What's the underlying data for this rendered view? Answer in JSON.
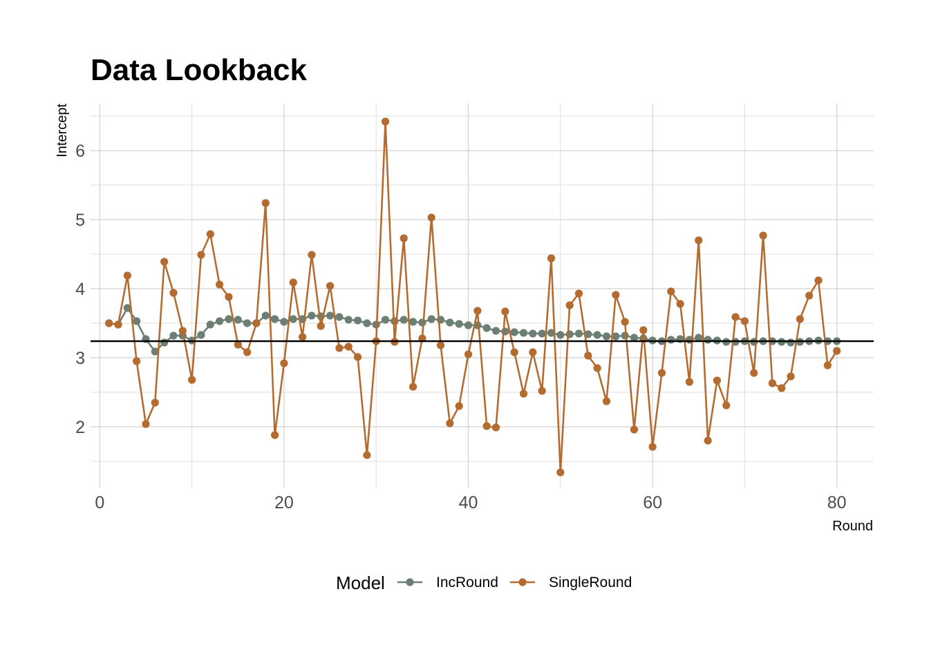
{
  "chart_data": {
    "type": "line",
    "title": "Data Lookback",
    "xlabel": "Round",
    "ylabel": "Intercept",
    "xlim": [
      -1,
      84
    ],
    "ylim": [
      1.12,
      6.68
    ],
    "x_ticks": [
      0,
      20,
      40,
      60,
      80
    ],
    "x_tick_labels": [
      "0",
      "20",
      "40",
      "60",
      "80"
    ],
    "y_ticks": [
      2,
      3,
      4,
      5,
      6
    ],
    "y_tick_labels": [
      "2",
      "3",
      "4",
      "5",
      "6"
    ],
    "grid": true,
    "reference_line": {
      "y": 3.24,
      "color": "#000000"
    },
    "legend": {
      "title": "Model",
      "position": "bottom"
    },
    "x": [
      1,
      2,
      3,
      4,
      5,
      6,
      7,
      8,
      9,
      10,
      11,
      12,
      13,
      14,
      15,
      16,
      17,
      18,
      19,
      20,
      21,
      22,
      23,
      24,
      25,
      26,
      27,
      28,
      29,
      30,
      31,
      32,
      33,
      34,
      35,
      36,
      37,
      38,
      39,
      40,
      41,
      42,
      43,
      44,
      45,
      46,
      47,
      48,
      49,
      50,
      51,
      52,
      53,
      54,
      55,
      56,
      57,
      58,
      59,
      60,
      61,
      62,
      63,
      64,
      65,
      66,
      67,
      68,
      69,
      70,
      71,
      72,
      73,
      74,
      75,
      76,
      77,
      78,
      79,
      80
    ],
    "series": [
      {
        "name": "IncRound",
        "color": "#6b7f74",
        "values": [
          3.5,
          3.48,
          3.72,
          3.53,
          3.27,
          3.09,
          3.22,
          3.32,
          3.32,
          3.25,
          3.33,
          3.48,
          3.53,
          3.56,
          3.55,
          3.5,
          3.5,
          3.61,
          3.56,
          3.52,
          3.56,
          3.56,
          3.61,
          3.6,
          3.61,
          3.59,
          3.55,
          3.54,
          3.5,
          3.48,
          3.55,
          3.53,
          3.55,
          3.52,
          3.51,
          3.56,
          3.55,
          3.51,
          3.49,
          3.47,
          3.47,
          3.43,
          3.39,
          3.38,
          3.37,
          3.36,
          3.35,
          3.35,
          3.36,
          3.33,
          3.34,
          3.35,
          3.34,
          3.33,
          3.31,
          3.31,
          3.32,
          3.29,
          3.28,
          3.25,
          3.24,
          3.26,
          3.27,
          3.26,
          3.29,
          3.26,
          3.25,
          3.23,
          3.23,
          3.24,
          3.23,
          3.24,
          3.24,
          3.23,
          3.22,
          3.23,
          3.24,
          3.25,
          3.24,
          3.24
        ]
      },
      {
        "name": "SingleRound",
        "color": "#b46b2f",
        "values": [
          3.5,
          3.48,
          4.19,
          2.95,
          2.04,
          2.35,
          4.39,
          3.94,
          3.39,
          2.68,
          4.49,
          4.79,
          4.06,
          3.88,
          3.19,
          3.08,
          3.5,
          5.24,
          1.88,
          2.92,
          4.09,
          3.3,
          4.49,
          3.46,
          4.04,
          3.14,
          3.16,
          3.01,
          1.59,
          3.24,
          6.42,
          3.23,
          4.73,
          2.58,
          3.28,
          5.03,
          3.18,
          2.05,
          2.3,
          3.05,
          3.68,
          2.01,
          1.99,
          3.67,
          3.08,
          2.48,
          3.08,
          2.52,
          4.44,
          1.34,
          3.76,
          3.93,
          3.03,
          2.85,
          2.37,
          3.91,
          3.52,
          1.96,
          3.4,
          1.71,
          2.78,
          3.96,
          3.78,
          2.65,
          4.7,
          1.8,
          2.67,
          2.31,
          3.59,
          3.53,
          2.78,
          4.77,
          2.63,
          2.56,
          2.73,
          3.56,
          3.9,
          4.12,
          2.89,
          3.1
        ]
      }
    ]
  }
}
